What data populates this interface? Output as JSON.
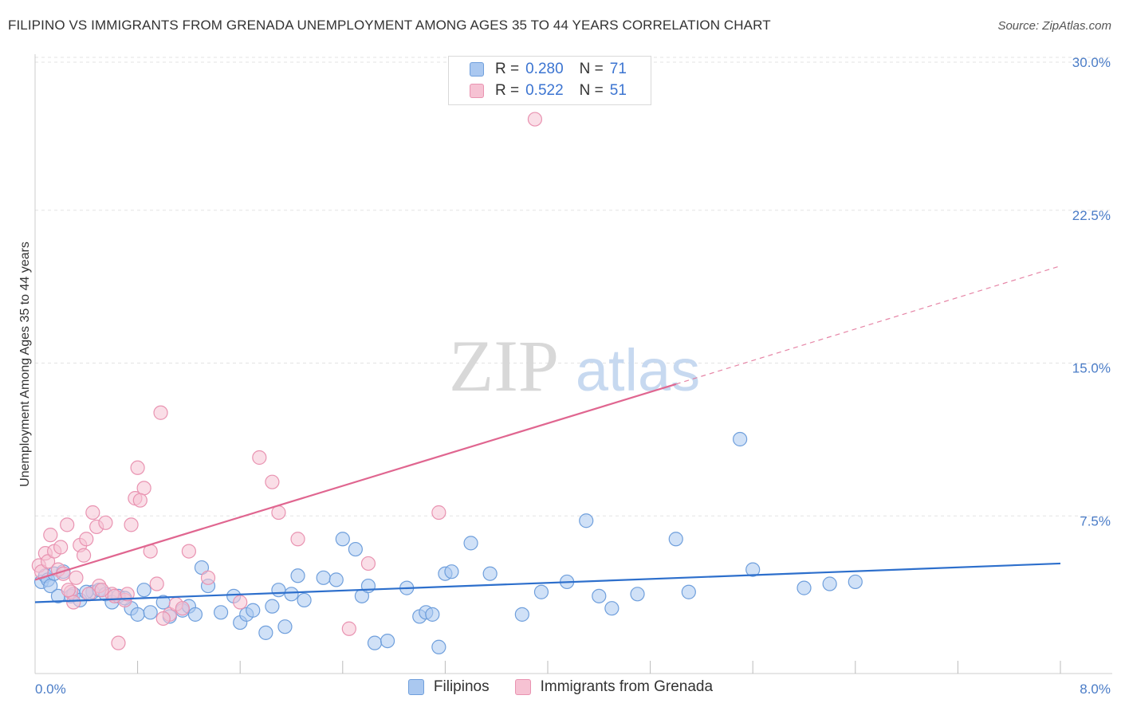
{
  "title": "FILIPINO VS IMMIGRANTS FROM GRENADA UNEMPLOYMENT AMONG AGES 35 TO 44 YEARS CORRELATION CHART",
  "source": "Source: ZipAtlas.com",
  "watermark": {
    "zip": "ZIP",
    "atlas": "atlas"
  },
  "colors": {
    "blue_fill": "#aac8f0",
    "blue_stroke": "#6f9fdc",
    "blue_line": "#2d6fcc",
    "pink_fill": "#f6c2d3",
    "pink_stroke": "#e993b1",
    "pink_line": "#e06690",
    "tick_text": "#4a7cc7",
    "grid": "#e3e3e3"
  },
  "legend": {
    "rows": [
      {
        "r_label": "R =",
        "r_value": "0.280",
        "n_label": "N =",
        "n_value": "71"
      },
      {
        "r_label": "R =",
        "r_value": "0.522",
        "n_label": "N =",
        "n_value": "51"
      }
    ]
  },
  "bottom_legend": {
    "series_1": "Filipinos",
    "series_2": "Immigrants from Grenada"
  },
  "chart_data": {
    "type": "scatter",
    "title": "FILIPINO VS IMMIGRANTS FROM GRENADA UNEMPLOYMENT AMONG AGES 35 TO 44 YEARS CORRELATION CHART",
    "xlabel": "",
    "ylabel": "Unemployment Among Ages 35 to 44 years",
    "xlim": [
      0,
      8.0
    ],
    "ylim": [
      0,
      30.0
    ],
    "x_tick_labels": [
      "0.0%",
      "8.0%"
    ],
    "y_ticks": [
      7.5,
      15.0,
      22.5,
      30.0
    ],
    "y_tick_labels": [
      "7.5%",
      "15.0%",
      "22.5%",
      "30.0%"
    ],
    "series": [
      {
        "name": "Filipinos",
        "r": 0.28,
        "n": 71,
        "trend": {
          "x0": 0.0,
          "y0": 3.5,
          "x1": 8.0,
          "y1": 5.4
        },
        "points": [
          [
            0.05,
            4.5
          ],
          [
            0.08,
            4.8
          ],
          [
            0.1,
            4.6
          ],
          [
            0.12,
            4.3
          ],
          [
            0.15,
            4.9
          ],
          [
            0.28,
            3.8
          ],
          [
            0.3,
            3.9
          ],
          [
            0.35,
            3.6
          ],
          [
            0.45,
            4.0
          ],
          [
            0.5,
            4.1
          ],
          [
            0.55,
            3.9
          ],
          [
            0.6,
            3.5
          ],
          [
            0.75,
            3.2
          ],
          [
            0.8,
            2.9
          ],
          [
            0.85,
            4.1
          ],
          [
            0.9,
            3.0
          ],
          [
            1.0,
            3.5
          ],
          [
            1.05,
            2.8
          ],
          [
            1.15,
            3.1
          ],
          [
            1.2,
            3.3
          ],
          [
            1.25,
            2.9
          ],
          [
            1.3,
            5.2
          ],
          [
            1.35,
            4.3
          ],
          [
            1.45,
            3.0
          ],
          [
            1.55,
            3.8
          ],
          [
            1.6,
            2.5
          ],
          [
            1.65,
            2.9
          ],
          [
            1.7,
            3.1
          ],
          [
            1.8,
            2.0
          ],
          [
            1.85,
            3.3
          ],
          [
            1.9,
            4.1
          ],
          [
            1.95,
            2.3
          ],
          [
            2.0,
            3.9
          ],
          [
            2.05,
            4.8
          ],
          [
            2.1,
            3.6
          ],
          [
            2.25,
            4.7
          ],
          [
            2.35,
            4.6
          ],
          [
            2.4,
            6.6
          ],
          [
            2.5,
            6.1
          ],
          [
            2.55,
            3.8
          ],
          [
            2.6,
            4.3
          ],
          [
            2.65,
            1.5
          ],
          [
            2.75,
            1.6
          ],
          [
            2.9,
            4.2
          ],
          [
            3.0,
            2.8
          ],
          [
            3.05,
            3.0
          ],
          [
            3.1,
            2.9
          ],
          [
            3.15,
            1.3
          ],
          [
            3.2,
            4.9
          ],
          [
            3.25,
            5.0
          ],
          [
            3.4,
            6.4
          ],
          [
            3.55,
            4.9
          ],
          [
            3.8,
            2.9
          ],
          [
            3.95,
            4.0
          ],
          [
            4.15,
            4.5
          ],
          [
            4.3,
            7.5
          ],
          [
            4.4,
            3.8
          ],
          [
            4.5,
            3.2
          ],
          [
            4.7,
            3.9
          ],
          [
            5.0,
            6.6
          ],
          [
            5.1,
            4.0
          ],
          [
            5.5,
            11.5
          ],
          [
            5.6,
            5.1
          ],
          [
            6.0,
            4.2
          ],
          [
            6.2,
            4.4
          ],
          [
            6.4,
            4.5
          ],
          [
            0.18,
            3.8
          ],
          [
            0.22,
            5.0
          ],
          [
            0.4,
            4.0
          ],
          [
            0.65,
            3.8
          ],
          [
            0.7,
            3.7
          ]
        ]
      },
      {
        "name": "Immigrants from Grenada",
        "r": 0.522,
        "n": 51,
        "trend": {
          "x0": 0.0,
          "y0": 4.6,
          "x1": 5.0,
          "y1": 14.2,
          "dash_x1": 8.0,
          "dash_y1": 20.0
        },
        "points": [
          [
            0.03,
            5.3
          ],
          [
            0.05,
            5.0
          ],
          [
            0.08,
            5.9
          ],
          [
            0.1,
            5.5
          ],
          [
            0.12,
            6.8
          ],
          [
            0.15,
            6.0
          ],
          [
            0.18,
            5.1
          ],
          [
            0.2,
            6.2
          ],
          [
            0.22,
            4.9
          ],
          [
            0.25,
            7.3
          ],
          [
            0.28,
            4.0
          ],
          [
            0.3,
            3.5
          ],
          [
            0.35,
            6.3
          ],
          [
            0.38,
            5.8
          ],
          [
            0.4,
            6.6
          ],
          [
            0.42,
            3.9
          ],
          [
            0.45,
            7.9
          ],
          [
            0.48,
            7.2
          ],
          [
            0.5,
            4.3
          ],
          [
            0.55,
            7.4
          ],
          [
            0.6,
            3.9
          ],
          [
            0.65,
            1.5
          ],
          [
            0.7,
            3.6
          ],
          [
            0.75,
            7.3
          ],
          [
            0.78,
            8.6
          ],
          [
            0.8,
            10.1
          ],
          [
            0.85,
            9.1
          ],
          [
            0.9,
            6.0
          ],
          [
            0.95,
            4.4
          ],
          [
            0.98,
            12.8
          ],
          [
            1.05,
            2.9
          ],
          [
            1.1,
            3.4
          ],
          [
            1.2,
            6.0
          ],
          [
            1.35,
            4.7
          ],
          [
            1.6,
            3.5
          ],
          [
            1.75,
            10.6
          ],
          [
            1.85,
            9.4
          ],
          [
            1.9,
            7.9
          ],
          [
            2.05,
            6.6
          ],
          [
            2.45,
            2.2
          ],
          [
            2.6,
            5.4
          ],
          [
            3.15,
            7.9
          ],
          [
            3.9,
            27.2
          ],
          [
            0.32,
            4.7
          ],
          [
            0.52,
            4.1
          ],
          [
            0.62,
            3.8
          ],
          [
            0.72,
            3.9
          ],
          [
            0.82,
            8.5
          ],
          [
            1.0,
            2.7
          ],
          [
            1.15,
            3.2
          ],
          [
            0.26,
            4.1
          ]
        ]
      }
    ],
    "grid": true,
    "legend_position": "top-center"
  }
}
